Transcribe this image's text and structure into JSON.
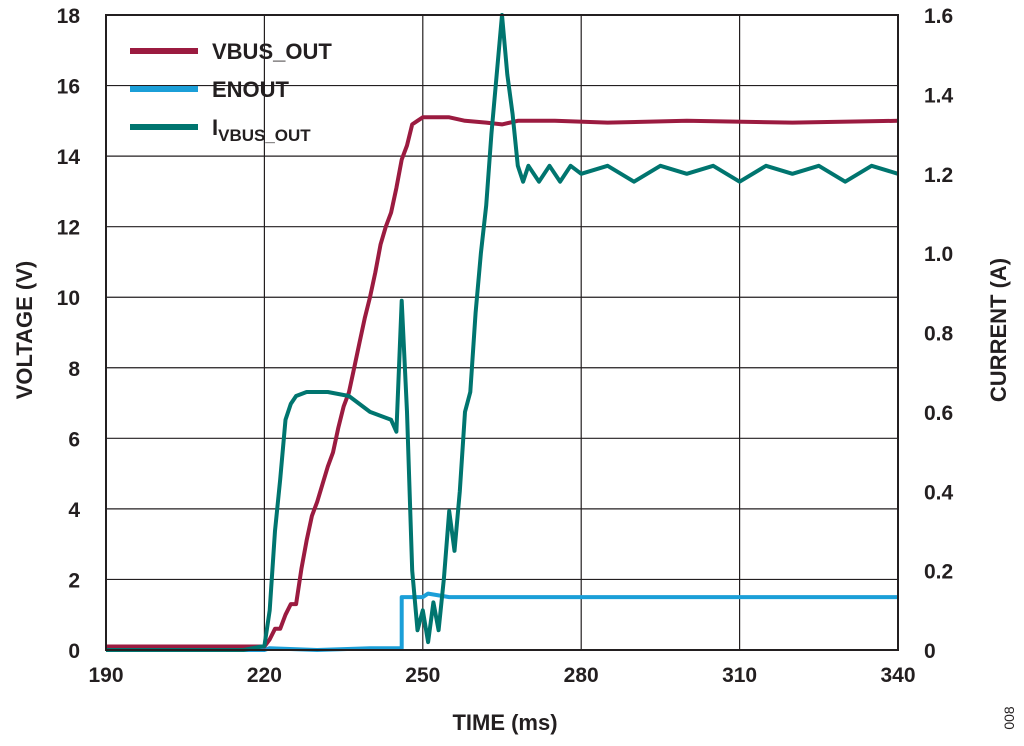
{
  "figure_id": "008",
  "colors": {
    "vbus": "#9b1b40",
    "enout": "#1b9fd8",
    "ivbus": "#00756f",
    "grid": "#231f20"
  },
  "chart_data": {
    "type": "line",
    "title": "",
    "xlabel": "TIME (ms)",
    "ylabel": "VOLTAGE (V)",
    "y2label": "CURRENT (A)",
    "xlim": [
      190,
      340
    ],
    "ylim": [
      0,
      18
    ],
    "y2lim": [
      0,
      1.6
    ],
    "xticks": [
      190,
      220,
      250,
      280,
      310,
      340
    ],
    "yticks": [
      0,
      2,
      4,
      6,
      8,
      10,
      12,
      14,
      16,
      18
    ],
    "y2ticks": [
      "0",
      "0.2",
      "0.4",
      "0.6",
      "0.8",
      "1.0",
      "1.2",
      "1.4",
      "1.6"
    ],
    "grid": true,
    "legend_position": "top-left",
    "series": [
      {
        "name": "VBUS_OUT",
        "axis": "left",
        "color": "#9b1b40",
        "points": [
          [
            190,
            0.1
          ],
          [
            200,
            0.1
          ],
          [
            210,
            0.1
          ],
          [
            219,
            0.1
          ],
          [
            220,
            0.1
          ],
          [
            221,
            0.3
          ],
          [
            222,
            0.6
          ],
          [
            223,
            0.6
          ],
          [
            224,
            1.0
          ],
          [
            225,
            1.3
          ],
          [
            226,
            1.3
          ],
          [
            227,
            2.3
          ],
          [
            228,
            3.1
          ],
          [
            229,
            3.8
          ],
          [
            230,
            4.2
          ],
          [
            231,
            4.7
          ],
          [
            232,
            5.2
          ],
          [
            233,
            5.6
          ],
          [
            234,
            6.3
          ],
          [
            235,
            6.9
          ],
          [
            236,
            7.3
          ],
          [
            237,
            8.0
          ],
          [
            238,
            8.7
          ],
          [
            239,
            9.4
          ],
          [
            240,
            10.0
          ],
          [
            241,
            10.7
          ],
          [
            242,
            11.5
          ],
          [
            243,
            12.0
          ],
          [
            244,
            12.4
          ],
          [
            245,
            13.1
          ],
          [
            246,
            13.9
          ],
          [
            247,
            14.3
          ],
          [
            248,
            14.9
          ],
          [
            249,
            15.0
          ],
          [
            250,
            15.1
          ],
          [
            252,
            15.1
          ],
          [
            255,
            15.1
          ],
          [
            258,
            15.0
          ],
          [
            262,
            14.95
          ],
          [
            265,
            14.9
          ],
          [
            268,
            15.0
          ],
          [
            275,
            15.0
          ],
          [
            285,
            14.95
          ],
          [
            300,
            15.0
          ],
          [
            320,
            14.95
          ],
          [
            340,
            15.0
          ]
        ]
      },
      {
        "name": "ENOUT",
        "axis": "left",
        "color": "#1b9fd8",
        "points": [
          [
            190,
            0
          ],
          [
            200,
            0
          ],
          [
            210,
            0
          ],
          [
            220,
            0
          ],
          [
            221,
            0.05
          ],
          [
            230,
            0
          ],
          [
            240,
            0.05
          ],
          [
            246,
            0.05
          ],
          [
            246,
            1.5
          ],
          [
            250,
            1.5
          ],
          [
            251,
            1.6
          ],
          [
            255,
            1.5
          ],
          [
            260,
            1.5
          ],
          [
            280,
            1.5
          ],
          [
            300,
            1.5
          ],
          [
            320,
            1.5
          ],
          [
            340,
            1.5
          ]
        ]
      },
      {
        "name": "I",
        "name_subscript": "VBUS_OUT",
        "axis": "right",
        "color": "#00756f",
        "points": [
          [
            190,
            0
          ],
          [
            200,
            0
          ],
          [
            210,
            0
          ],
          [
            216,
            0
          ],
          [
            220,
            0.01
          ],
          [
            221,
            0.1
          ],
          [
            222,
            0.3
          ],
          [
            223,
            0.43
          ],
          [
            224,
            0.58
          ],
          [
            225,
            0.62
          ],
          [
            226,
            0.64
          ],
          [
            228,
            0.65
          ],
          [
            232,
            0.65
          ],
          [
            236,
            0.64
          ],
          [
            240,
            0.6
          ],
          [
            244,
            0.58
          ],
          [
            245,
            0.55
          ],
          [
            246,
            0.88
          ],
          [
            247,
            0.6
          ],
          [
            248,
            0.2
          ],
          [
            249,
            0.05
          ],
          [
            250,
            0.1
          ],
          [
            251,
            0.02
          ],
          [
            252,
            0.12
          ],
          [
            253,
            0.05
          ],
          [
            254,
            0.18
          ],
          [
            255,
            0.35
          ],
          [
            256,
            0.25
          ],
          [
            257,
            0.4
          ],
          [
            258,
            0.6
          ],
          [
            259,
            0.65
          ],
          [
            260,
            0.85
          ],
          [
            261,
            1.0
          ],
          [
            262,
            1.12
          ],
          [
            263,
            1.3
          ],
          [
            264,
            1.45
          ],
          [
            265,
            1.6
          ],
          [
            266,
            1.45
          ],
          [
            267,
            1.35
          ],
          [
            268,
            1.22
          ],
          [
            269,
            1.18
          ],
          [
            270,
            1.22
          ],
          [
            272,
            1.18
          ],
          [
            274,
            1.22
          ],
          [
            276,
            1.18
          ],
          [
            278,
            1.22
          ],
          [
            280,
            1.2
          ],
          [
            285,
            1.22
          ],
          [
            290,
            1.18
          ],
          [
            295,
            1.22
          ],
          [
            300,
            1.2
          ],
          [
            305,
            1.22
          ],
          [
            310,
            1.18
          ],
          [
            315,
            1.22
          ],
          [
            320,
            1.2
          ],
          [
            325,
            1.22
          ],
          [
            330,
            1.18
          ],
          [
            335,
            1.22
          ],
          [
            340,
            1.2
          ]
        ]
      }
    ]
  }
}
